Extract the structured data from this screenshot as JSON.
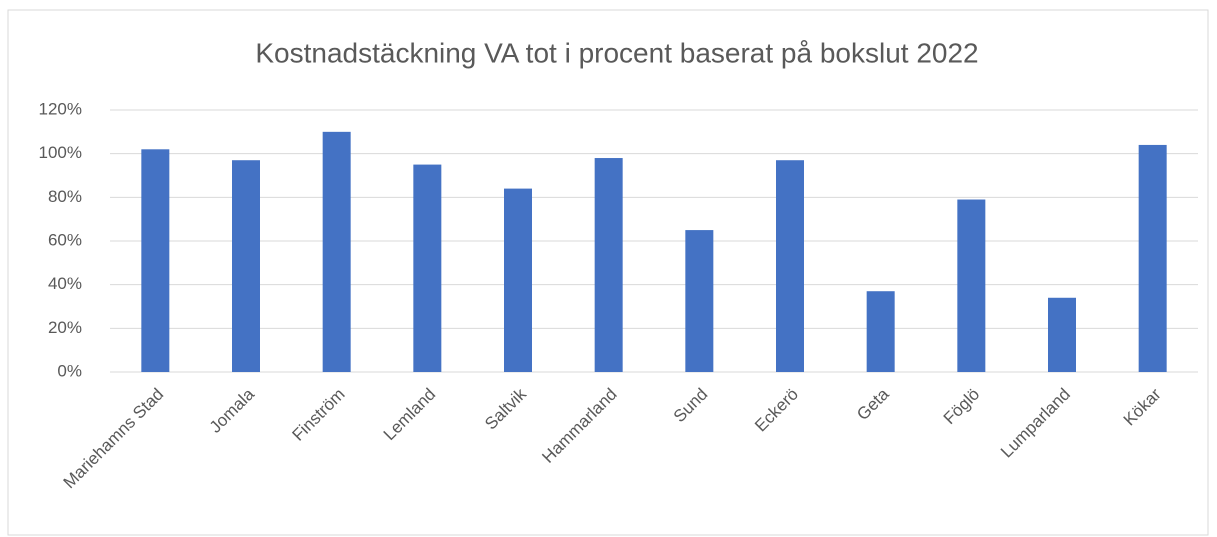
{
  "chart_data": {
    "type": "bar",
    "title": "Kostnadstäckning VA tot i procent baserat på bokslut 2022",
    "categories": [
      "Mariehamns Stad",
      "Jomala",
      "Finström",
      "Lemland",
      "Saltvik",
      "Hammarland",
      "Sund",
      "Eckerö",
      "Geta",
      "Föglö",
      "Lumparland",
      "Kökar"
    ],
    "values": [
      102,
      97,
      110,
      95,
      84,
      98,
      65,
      97,
      37,
      79,
      34,
      104
    ],
    "color": "#4472c4",
    "ylim": [
      0,
      120
    ],
    "yticks": [
      {
        "value": 0,
        "label": "0%"
      },
      {
        "value": 20,
        "label": "20%"
      },
      {
        "value": 40,
        "label": "40%"
      },
      {
        "value": 60,
        "label": "60%"
      },
      {
        "value": 80,
        "label": "80%"
      },
      {
        "value": 100,
        "label": "100%"
      },
      {
        "value": 120,
        "label": "120%"
      }
    ],
    "grid": true
  }
}
